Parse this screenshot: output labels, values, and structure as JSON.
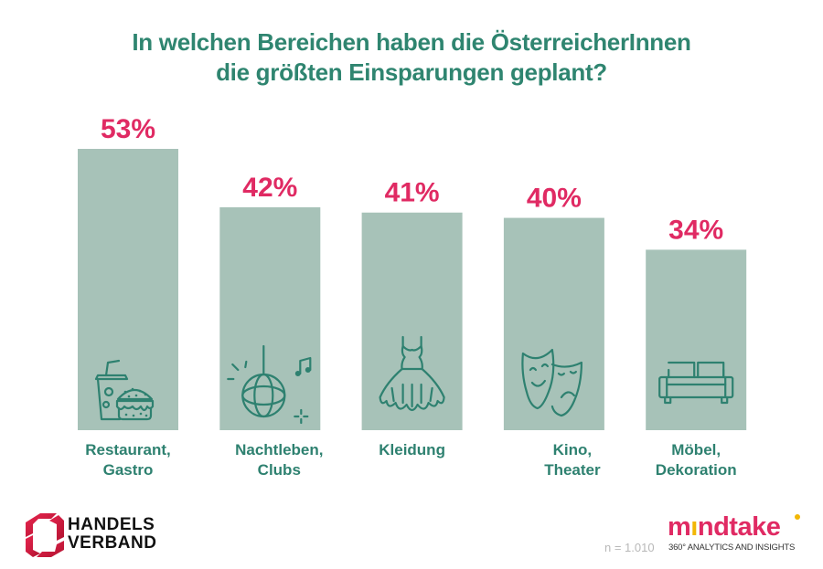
{
  "chart_data": {
    "type": "bar",
    "title": "In welchen Bereichen haben die ÖsterreicherInnen die größten Einsparungen geplant?",
    "title_lines": [
      "In welchen Bereichen haben die ÖsterreicherInnen",
      "die größten Einsparungen geplant?"
    ],
    "categories": [
      "Restaurant, Gastro",
      "Nachtleben, Clubs",
      "Kleidung",
      "Kino, Theater",
      "Möbel, Dekoration"
    ],
    "category_lines": [
      [
        "Restaurant,",
        "Gastro"
      ],
      [
        "Nachtleben,",
        "Clubs"
      ],
      [
        "Kleidung"
      ],
      [
        "Kino,",
        "Theater"
      ],
      [
        "Möbel,",
        "Dekoration"
      ]
    ],
    "values": [
      53,
      42,
      41,
      40,
      34
    ],
    "data_labels": [
      "53%",
      "42%",
      "41%",
      "40%",
      "34%"
    ],
    "icons": [
      "fastfood-icon",
      "disco-ball-icon",
      "dress-icon",
      "theater-masks-icon",
      "sofa-icon"
    ],
    "unit": "%",
    "xlabel": "",
    "ylabel": "",
    "ylim": [
      0,
      53
    ],
    "grid": false,
    "legend": "none",
    "colors": {
      "bar": "#a7c2b8",
      "data_label": "#e02a63",
      "text": "#2f8570",
      "icon": "#2e8170"
    }
  },
  "footer": {
    "sample_note": "n = 1.010",
    "left_logo": {
      "line1": "HANDELS",
      "line2": "VERBAND"
    },
    "right_logo": {
      "word_start": "m",
      "word_i": "ı",
      "word_end": "ndtake",
      "tagline": "360° ANALYTICS AND INSIGHTS"
    }
  }
}
